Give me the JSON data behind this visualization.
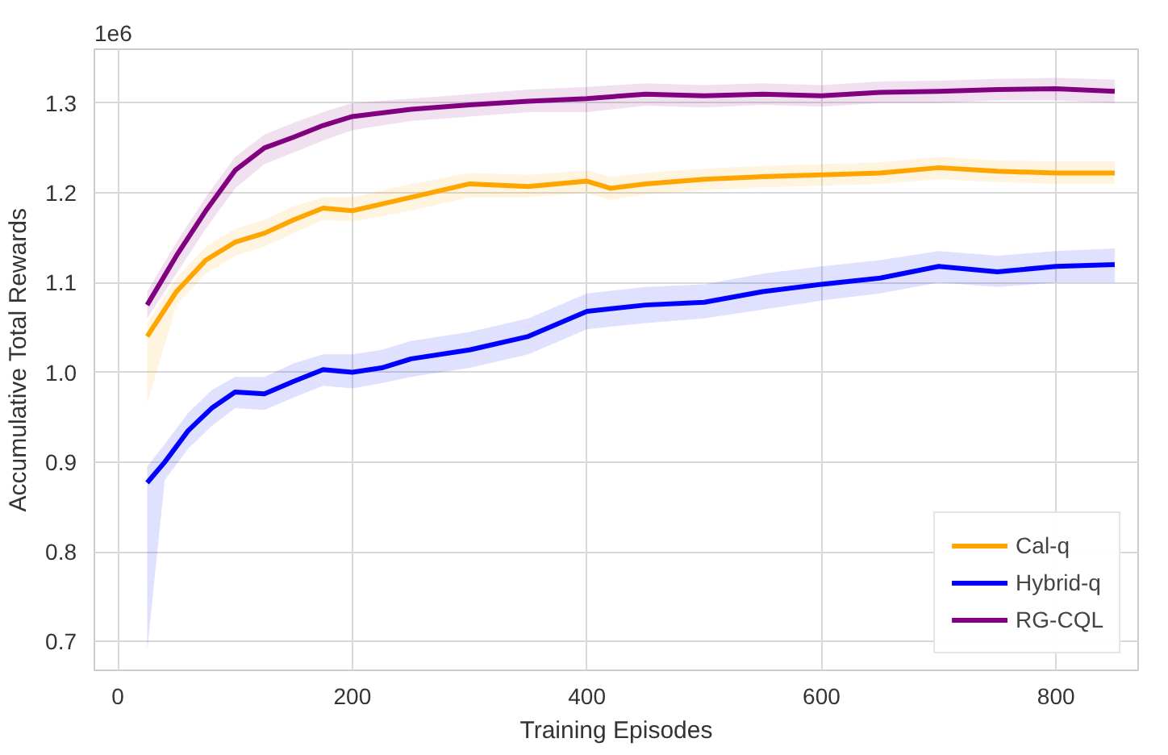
{
  "chart_data": {
    "type": "line",
    "xlabel": "Training Episodes",
    "ylabel": "Accumulative Total Rewards",
    "annotations": [
      "1e6"
    ],
    "xlim": [
      -20,
      870
    ],
    "ylim": [
      0.668,
      1.36
    ],
    "xticks": [
      0,
      200,
      400,
      600,
      800
    ],
    "yticks": [
      0.7,
      0.8,
      0.9,
      {
        "value": 1.0,
        "label": "1.0"
      },
      1.1,
      1.2,
      1.3
    ],
    "grid": true,
    "legend": "bottom right",
    "line_style": "solid",
    "marker": "none",
    "series": [
      {
        "name": "Cal-q",
        "color": "#ffa500",
        "x": [
          25,
          50,
          75,
          100,
          125,
          150,
          175,
          200,
          250,
          300,
          350,
          400,
          420,
          450,
          500,
          550,
          600,
          650,
          700,
          750,
          800,
          850
        ],
        "values": [
          1.04,
          1.09,
          1.125,
          1.145,
          1.155,
          1.17,
          1.183,
          1.18,
          1.195,
          1.21,
          1.207,
          1.213,
          1.205,
          1.21,
          1.215,
          1.218,
          1.22,
          1.222,
          1.228,
          1.224,
          1.222,
          1.222
        ],
        "lower": [
          0.965,
          1.075,
          1.11,
          1.13,
          1.14,
          1.155,
          1.17,
          1.168,
          1.18,
          1.195,
          1.195,
          1.2,
          1.192,
          1.198,
          1.203,
          1.206,
          1.208,
          1.21,
          1.215,
          1.212,
          1.21,
          1.21
        ],
        "upper": [
          1.055,
          1.105,
          1.14,
          1.16,
          1.17,
          1.185,
          1.195,
          1.195,
          1.21,
          1.222,
          1.22,
          1.225,
          1.218,
          1.222,
          1.227,
          1.23,
          1.232,
          1.234,
          1.24,
          1.236,
          1.235,
          1.235
        ]
      },
      {
        "name": "Hybrid-q",
        "color": "#0000ff",
        "x": [
          25,
          40,
          60,
          80,
          100,
          125,
          150,
          175,
          200,
          225,
          250,
          300,
          350,
          400,
          450,
          500,
          550,
          600,
          650,
          700,
          750,
          800,
          850
        ],
        "values": [
          0.877,
          0.9,
          0.935,
          0.96,
          0.978,
          0.976,
          0.99,
          1.003,
          1.0,
          1.005,
          1.015,
          1.025,
          1.04,
          1.068,
          1.075,
          1.078,
          1.09,
          1.098,
          1.105,
          1.118,
          1.112,
          1.118,
          1.12
        ],
        "lower": [
          0.69,
          0.88,
          0.915,
          0.94,
          0.96,
          0.958,
          0.972,
          0.985,
          0.982,
          0.988,
          0.995,
          1.005,
          1.02,
          1.048,
          1.055,
          1.06,
          1.07,
          1.08,
          1.088,
          1.1,
          1.095,
          1.1,
          1.1
        ],
        "upper": [
          0.895,
          0.92,
          0.955,
          0.98,
          0.995,
          0.995,
          1.01,
          1.02,
          1.02,
          1.025,
          1.035,
          1.045,
          1.06,
          1.088,
          1.095,
          1.098,
          1.11,
          1.118,
          1.125,
          1.135,
          1.13,
          1.135,
          1.138
        ]
      },
      {
        "name": "RG-CQL",
        "color": "#800080",
        "x": [
          25,
          50,
          75,
          100,
          125,
          150,
          175,
          200,
          250,
          300,
          350,
          400,
          450,
          500,
          550,
          600,
          650,
          700,
          750,
          800,
          850
        ],
        "values": [
          1.075,
          1.13,
          1.18,
          1.225,
          1.25,
          1.262,
          1.275,
          1.285,
          1.293,
          1.298,
          1.302,
          1.305,
          1.31,
          1.308,
          1.31,
          1.308,
          1.312,
          1.313,
          1.315,
          1.316,
          1.313
        ],
        "lower": [
          1.06,
          1.11,
          1.16,
          1.205,
          1.232,
          1.245,
          1.258,
          1.27,
          1.28,
          1.285,
          1.29,
          1.29,
          1.297,
          1.295,
          1.298,
          1.296,
          1.3,
          1.3,
          1.303,
          1.303,
          1.3
        ],
        "upper": [
          1.09,
          1.145,
          1.195,
          1.24,
          1.265,
          1.278,
          1.29,
          1.3,
          1.305,
          1.31,
          1.315,
          1.318,
          1.322,
          1.32,
          1.322,
          1.32,
          1.324,
          1.325,
          1.327,
          1.328,
          1.326
        ]
      }
    ]
  }
}
